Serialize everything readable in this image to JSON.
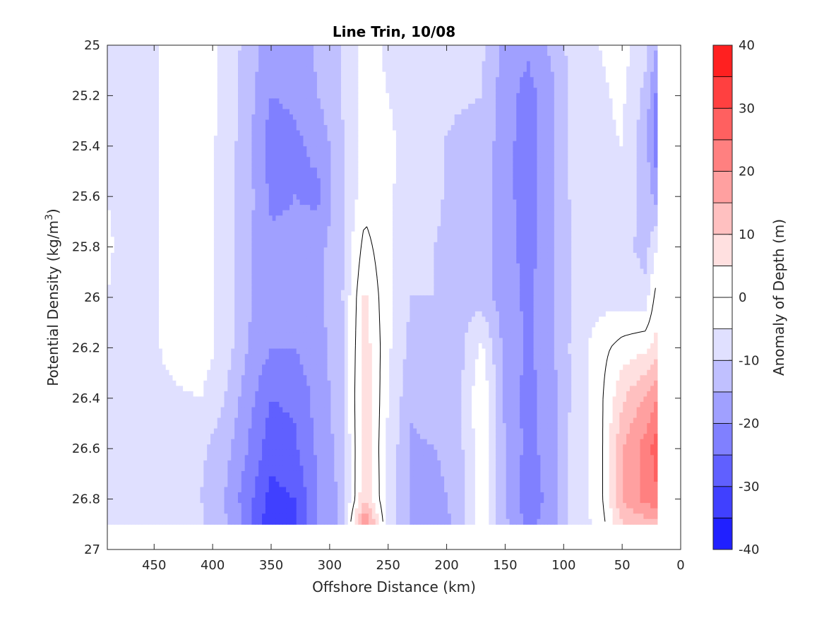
{
  "chart_data": {
    "type": "heatmap",
    "subtype": "filled-contour",
    "title": "Line Trin, 10/08",
    "xlabel": "Offshore Distance (km)",
    "ylabel_main": "Potential Density (kg/m",
    "ylabel_sup": "3",
    "ylabel_close": ")",
    "xlim": [
      490,
      0
    ],
    "x_reversed": true,
    "ylim": [
      25,
      27
    ],
    "y_reversed": true,
    "x_ticks": [
      450,
      400,
      350,
      300,
      250,
      200,
      150,
      100,
      50,
      0
    ],
    "y_ticks": [
      25,
      25.2,
      25.4,
      25.6,
      25.8,
      26,
      26.2,
      26.4,
      26.6,
      26.8,
      27
    ],
    "y_tick_labels": [
      "25",
      "25.2",
      "25.4",
      "25.6",
      "25.8",
      "26",
      "26.2",
      "26.4",
      "26.6",
      "26.8",
      "27"
    ],
    "data_extent": {
      "x": [
        490,
        20
      ],
      "y": [
        25,
        26.9
      ]
    },
    "colorbar": {
      "label": "Anomaly of Depth (m)",
      "range": [
        -40,
        40
      ],
      "levels": [
        -40,
        -35,
        -30,
        -25,
        -20,
        -15,
        -10,
        -5,
        0,
        5,
        10,
        15,
        20,
        25,
        30,
        35,
        40
      ],
      "tick_values": [
        40,
        30,
        20,
        10,
        0,
        -10,
        -20,
        -30,
        -40
      ],
      "tick_labels": [
        "40",
        "30",
        "20",
        "10",
        "0",
        "-10",
        "-20",
        "-30",
        "-40"
      ],
      "colors": [
        "#0000ff",
        "#2020ff",
        "#4040ff",
        "#6060ff",
        "#8080ff",
        "#a0a0ff",
        "#c0c0ff",
        "#e0e0ff",
        "#ffffff",
        "#ffffff",
        "#ffe0e0",
        "#ffc0c0",
        "#ffa0a0",
        "#ff8080",
        "#ff6060",
        "#ff4040",
        "#ff2020",
        "#ff0000"
      ]
    },
    "grid_x": [
      490,
      470,
      450,
      430,
      410,
      390,
      370,
      350,
      330,
      310,
      290,
      270,
      250,
      230,
      210,
      190,
      170,
      150,
      130,
      110,
      90,
      70,
      50,
      30,
      20
    ],
    "grid_y": [
      25.0,
      25.2,
      25.4,
      25.6,
      25.8,
      26.0,
      26.2,
      26.4,
      26.6,
      26.8,
      26.9
    ],
    "grid_z": [
      [
        -5,
        -8,
        -6,
        -2,
        -2,
        -6,
        -12,
        -18,
        -18,
        -14,
        -10,
        -3,
        -6,
        -7,
        -6,
        -7,
        -9,
        -17,
        -19,
        -14,
        -7,
        -5,
        -3,
        -8,
        -15
      ],
      [
        -5,
        -8,
        -6,
        -2,
        -2,
        -6,
        -13,
        -20,
        -19,
        -15,
        -10,
        -3,
        -5,
        -7,
        -7,
        -9,
        -10,
        -18,
        -22,
        -16,
        -8,
        -6,
        -4,
        -12,
        -22
      ],
      [
        -5,
        -8,
        -6,
        -2,
        -2,
        -7,
        -13,
        -23,
        -21,
        -19,
        -11,
        -3,
        -4,
        -7,
        -9,
        -12,
        -12,
        -18,
        -23,
        -16,
        -8,
        -6,
        -5,
        -13,
        -24
      ],
      [
        -5,
        -8,
        -6,
        -2,
        -2,
        -7,
        -13,
        -21,
        -20,
        -21,
        -11,
        -2,
        -4,
        -8,
        -9,
        -12,
        -12,
        -18,
        -23,
        -16,
        -8,
        -6,
        -6,
        -12,
        -17
      ],
      [
        -4,
        -8,
        -6,
        -2,
        -2,
        -7,
        -14,
        -19,
        -19,
        -17,
        -11,
        2,
        -4,
        -9,
        -10,
        -12,
        -12,
        -18,
        -22,
        -16,
        -9,
        -7,
        -8,
        -12,
        -5
      ],
      [
        -5,
        -8,
        -6,
        -2,
        -2,
        -7,
        -14,
        -19,
        -19,
        -16,
        -11,
        6,
        -4,
        -10,
        -10,
        -12,
        -12,
        -18,
        -21,
        -16,
        -9,
        -7,
        -7,
        -8,
        3
      ],
      [
        -7,
        -6,
        -6,
        -2,
        -2,
        -7,
        -15,
        -20,
        -20,
        -17,
        -12,
        8,
        -4,
        -12,
        -11,
        -12,
        -4,
        -17,
        -21,
        -16,
        -8,
        -2,
        2,
        4,
        7
      ],
      [
        -6,
        -8,
        -7,
        -6,
        -5,
        -10,
        -18,
        -25,
        -24,
        -18,
        -12,
        9,
        -5,
        -14,
        -12,
        -12,
        0,
        -16,
        -22,
        -17,
        -8,
        -2,
        9,
        16,
        20
      ],
      [
        -8,
        -9,
        -8,
        -7,
        -9,
        -13,
        -20,
        -28,
        -26,
        -19,
        -13,
        9,
        -6,
        -16,
        -15,
        -12,
        -2,
        -15,
        -22,
        -17,
        -7,
        -3,
        15,
        22,
        28
      ],
      [
        -8,
        -8,
        -7,
        -6,
        -10,
        -15,
        -23,
        -32,
        -30,
        -20,
        -14,
        10,
        -6,
        -16,
        -17,
        -13,
        -2,
        -15,
        -23,
        -18,
        -7,
        -3,
        15,
        22,
        24
      ],
      [
        -8,
        -7,
        -6,
        -6,
        -9,
        -14,
        -22,
        -35,
        -31,
        -19,
        -14,
        22,
        -6,
        -16,
        -19,
        -13,
        -2,
        -14,
        -22,
        -17,
        -7,
        -4,
        10,
        12,
        12
      ]
    ]
  }
}
